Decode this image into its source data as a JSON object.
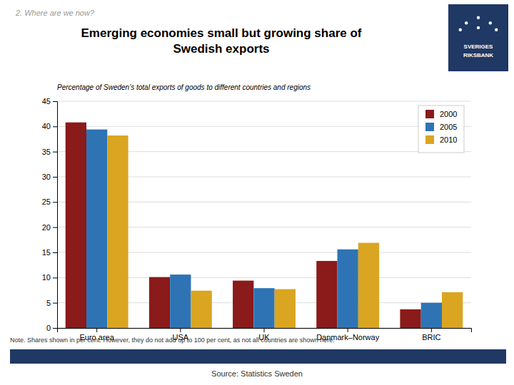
{
  "chart_data": {
    "type": "bar",
    "supertitle": "2. Where are we now?",
    "title": "Emerging economies small but growing share of\nSwedish exports",
    "subtitle": "Percentage of Sweden’s total exports of goods to different countries and regions",
    "note": "Note. Shares shown in per cent. However, they do not add up to 100 per cent, as not all countries are shown here.",
    "source": "Source: Statistics Sweden",
    "annotations": [
      "SVERIGES\nRIKSBANK"
    ],
    "categories": [
      "Euro area",
      "USA",
      "UK",
      "Danmark–Norway",
      "BRIC"
    ],
    "series": [
      {
        "name": "2000",
        "color": "#8B1A1A",
        "values": [
          40.8,
          10.1,
          9.4,
          13.3,
          3.7
        ]
      },
      {
        "name": "2005",
        "color": "#2E74B5",
        "values": [
          39.4,
          10.6,
          7.9,
          15.6,
          5.0
        ]
      },
      {
        "name": "2010",
        "color": "#DAA520",
        "values": [
          38.2,
          7.4,
          7.7,
          16.9,
          7.1
        ]
      }
    ],
    "ylim": [
      0,
      45
    ],
    "yticks": [
      0,
      5,
      10,
      15,
      20,
      25,
      30,
      35,
      40,
      45
    ],
    "grid": true,
    "legend": "upper right"
  }
}
